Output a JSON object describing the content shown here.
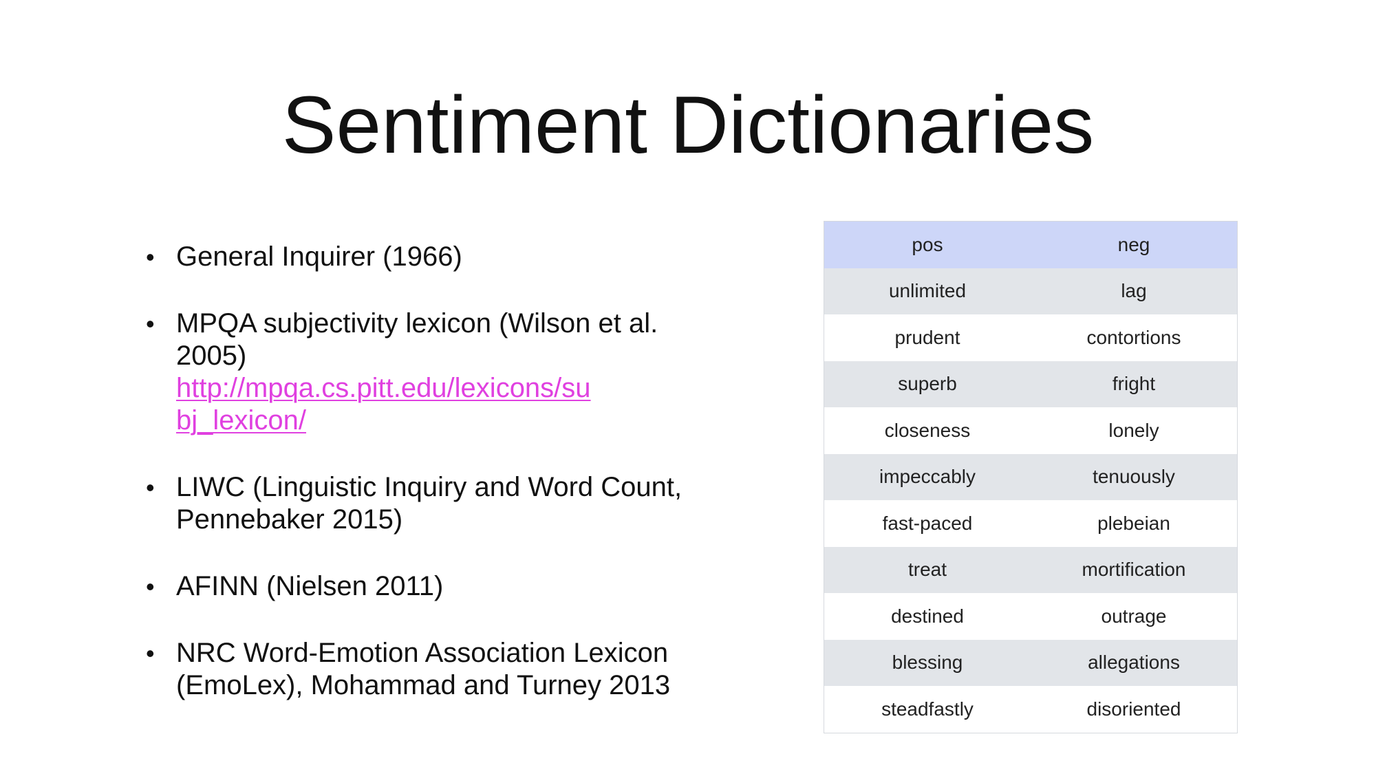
{
  "title": "Sentiment Dictionaries",
  "bullets": [
    {
      "text": "General Inquirer (1966)",
      "link": ""
    },
    {
      "text": "MPQA subjectivity lexicon (Wilson et al. 2005)",
      "link": "http://mpqa.cs.pitt.edu/lexicons/subj_lexicon/"
    },
    {
      "text": "LIWC (Linguistic Inquiry and Word Count, Pennebaker 2015)",
      "link": ""
    },
    {
      "text": "AFINN (Nielsen 2011)",
      "link": ""
    },
    {
      "text": "NRC Word-Emotion Association Lexicon (EmoLex), Mohammad and Turney 2013",
      "link": ""
    }
  ],
  "table": {
    "headers": [
      "pos",
      "neg"
    ],
    "rows": [
      [
        "unlimited",
        "lag"
      ],
      [
        "prudent",
        "contortions"
      ],
      [
        "superb",
        "fright"
      ],
      [
        "closeness",
        "lonely"
      ],
      [
        "impeccably",
        "tenuously"
      ],
      [
        "fast-paced",
        "plebeian"
      ],
      [
        "treat",
        "mortification"
      ],
      [
        "destined",
        "outrage"
      ],
      [
        "blessing",
        "allegations"
      ],
      [
        "steadfastly",
        "disoriented"
      ]
    ]
  },
  "colors": {
    "link": "#e040e0",
    "header_row": "#cdd6f8",
    "stripe_row": "#e2e5e9"
  }
}
